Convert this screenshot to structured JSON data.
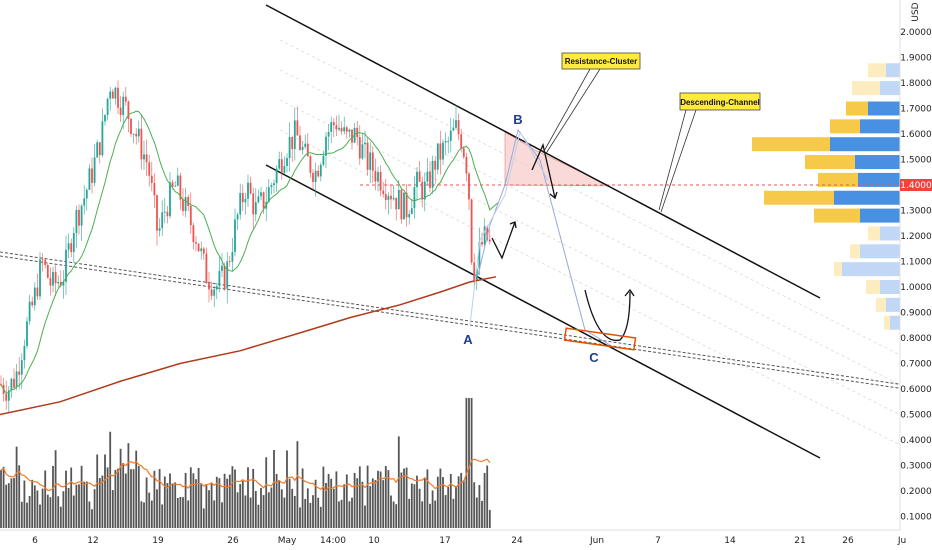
{
  "chart_data": {
    "type": "candlestick",
    "currency": "USD",
    "x_ticks": [
      "6",
      "12",
      "19",
      "26",
      "May",
      "14:00",
      "10",
      "17",
      "24",
      "Jun",
      "7",
      "14",
      "21",
      "26",
      "Ju"
    ],
    "y_ticks": [
      "2.0000",
      "1.9000",
      "1.8000",
      "1.7000",
      "1.6000",
      "1.5000",
      "1.4000",
      "1.3000",
      "1.2000",
      "1.1000",
      "1.0000",
      "0.9000",
      "0.8000",
      "0.7000",
      "0.6000",
      "0.5000",
      "0.4000",
      "0.3000",
      "0.2000",
      "0.1000"
    ],
    "ylim": [
      0.05,
      2.05
    ],
    "current_price": "1.4000",
    "annotations": {
      "resistance": "Resistance-Cluster",
      "channel": "Descending-Channel",
      "point_a": "A",
      "point_b": "B",
      "point_c": "C"
    },
    "colors": {
      "up": "#26a69a",
      "down": "#ef5350",
      "ma_fast": "#4caf50",
      "ma_slow": "#b03a1a",
      "volume": "#555555",
      "volume_ma": "#f07c2c",
      "price_line": "#ef5350",
      "callout": "#ffeb3b",
      "profile_left": "#f7c948",
      "profile_right": "#4a90e2",
      "target_box": "#e65100",
      "price_tag": "#f44336"
    }
  }
}
